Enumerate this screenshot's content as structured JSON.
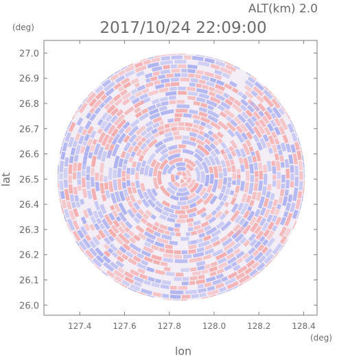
{
  "header": {
    "altitude_label": "ALT(km) 2.0",
    "datetime": "2017/10/24 22:09:00"
  },
  "chart_data": {
    "type": "heatmap",
    "description": "PPI-style circular scan around the radar site",
    "xlabel": "lon",
    "ylabel": "lat",
    "x_unit": "(deg)",
    "y_unit": "(deg)",
    "xlim": [
      127.24,
      128.46
    ],
    "ylim": [
      25.96,
      27.05
    ],
    "x_ticks": [
      127.4,
      127.6,
      127.8,
      128.0,
      128.2,
      128.4
    ],
    "x_tick_labels": [
      "127.4",
      "127.6",
      "127.8",
      "128.0",
      "128.2",
      "128.4"
    ],
    "y_ticks": [
      26.0,
      26.1,
      26.2,
      26.3,
      26.4,
      26.5,
      26.6,
      26.7,
      26.8,
      26.9,
      27.0
    ],
    "y_tick_labels": [
      "26.0",
      "26.1",
      "26.2",
      "26.3",
      "26.4",
      "26.5",
      "26.6",
      "26.7",
      "26.8",
      "26.9",
      "27.0"
    ],
    "center": {
      "lon": 127.853,
      "lat": 26.508
    },
    "radius_deg_lat": 0.49,
    "colors": {
      "positive": "#f4a8a8",
      "negative": "#a9aef0",
      "neutral": "#ffffff"
    }
  }
}
